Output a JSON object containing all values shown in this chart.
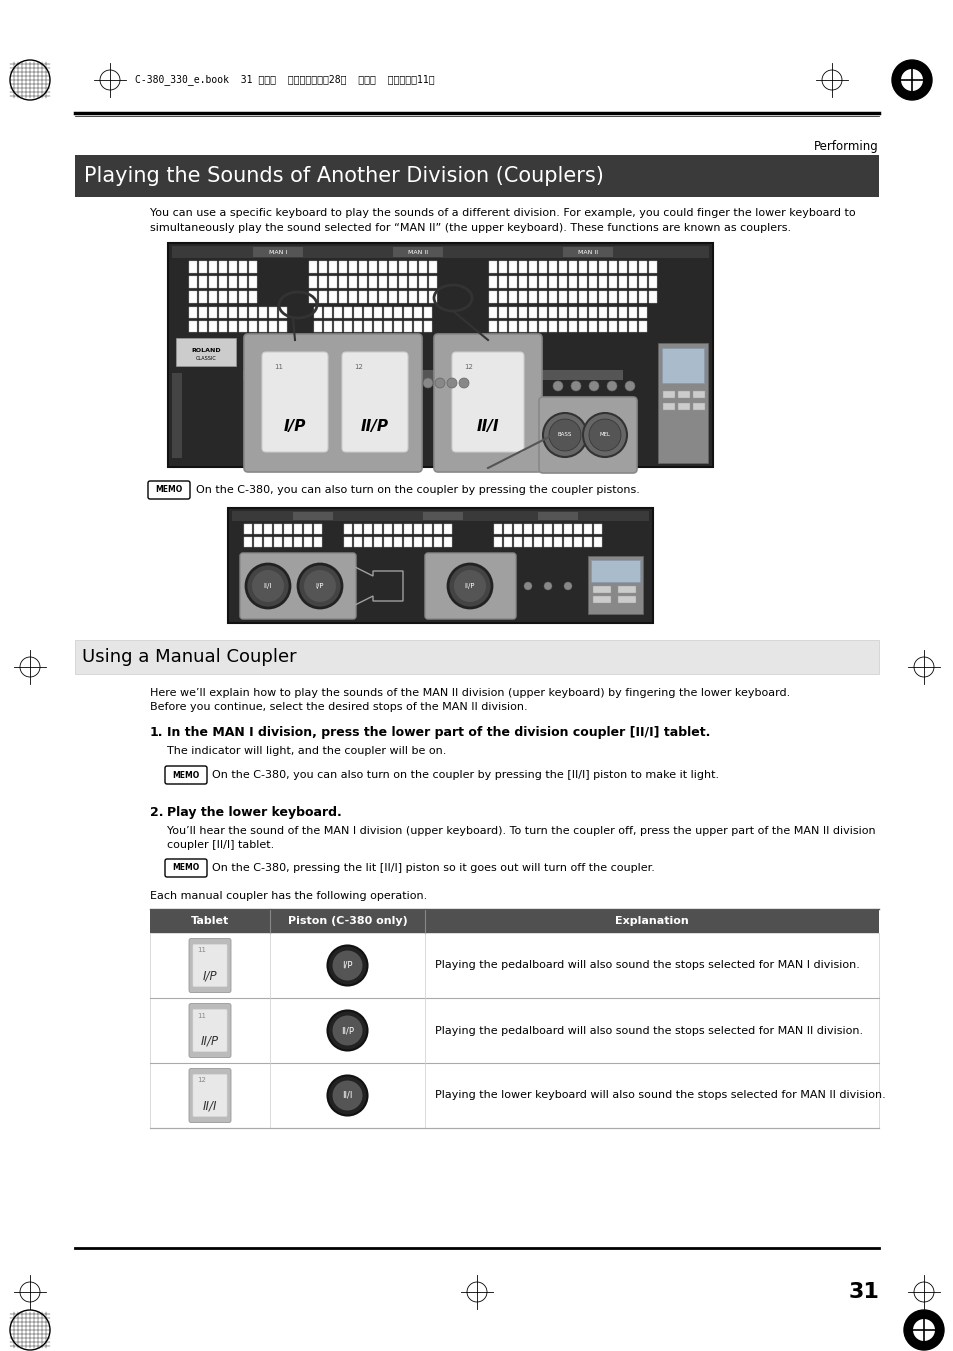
{
  "page_bg": "#ffffff",
  "header_text": "C-380_330_e.book  31ページ  ２０１０年４月28日  水曜日  午後１０時11分",
  "section_label": "Performing",
  "title": "Playing the Sounds of Another Division (Couplers)",
  "title_bg": "#3a3a3a",
  "title_color": "#ffffff",
  "intro_line1": "You can use a specific keyboard to play the sounds of a different division. For example, you could finger the lower keyboard to",
  "intro_line2": "simultaneously play the sound selected for “MAN II” (the upper keyboard). These functions are known as couplers.",
  "memo_text1": "On the C-380, you can also turn on the coupler by pressing the coupler pistons.",
  "section2_title": "Using a Manual Coupler",
  "section2_bg": "#e6e6e6",
  "section2_text1": "Here we’ll explain how to play the sounds of the MAN II division (upper keyboard) by fingering the lower keyboard.",
  "section2_text2": "Before you continue, select the desired stops of the MAN II division.",
  "step1_bold": "In the MAN I division, press the lower part of the division coupler [II/I] tablet.",
  "step1_text": "The indicator will light, and the coupler will be on.",
  "memo_step1": "On the C-380, you can also turn on the coupler by pressing the [II/I] piston to make it light.",
  "step2_bold": "Play the lower keyboard.",
  "step2_line1": "You’ll hear the sound of the MAN I division (upper keyboard). To turn the coupler off, press the upper part of the MAN II division",
  "step2_line2": "coupler [II/I] tablet.",
  "memo_step2": "On the C-380, pressing the lit [II/I] piston so it goes out will turn off the coupler.",
  "table_intro": "Each manual coupler has the following operation.",
  "table_headers": [
    "Tablet",
    "Piston (C-380 only)",
    "Explanation"
  ],
  "table_row1": [
    "I/P",
    "I/P",
    "Playing the pedalboard will also sound the stops selected for MAN I division."
  ],
  "table_row2": [
    "II/P",
    "II/P",
    "Playing the pedalboard will also sound the stops selected for MAN II division."
  ],
  "table_row3": [
    "II/I",
    "II/I",
    "Playing the lower keyboard will also sound the stops selected for MAN II division."
  ],
  "page_number": "31",
  "header_raw": "C-380_330_e.book  31 ページ  ２０１０年４月28日  水曜日  午後１０時11分"
}
